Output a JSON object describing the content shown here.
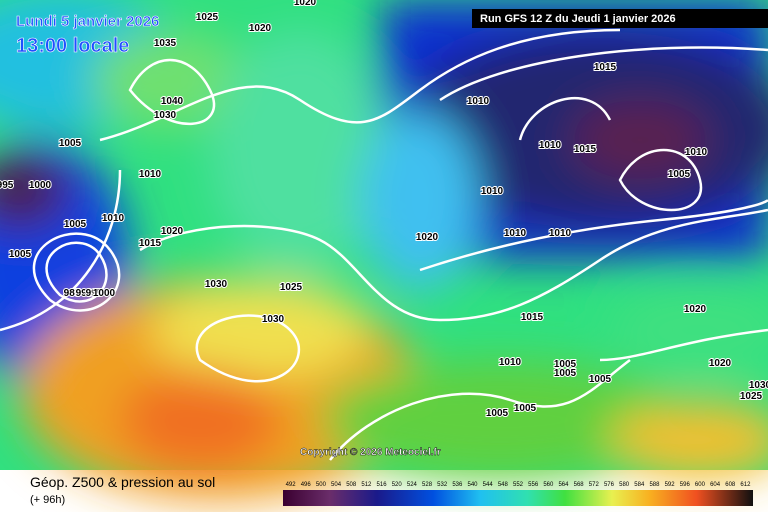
{
  "header": {
    "date": "Lundi 5 janvier 2026",
    "time": "13:00 locale",
    "run": "Run GFS 12 Z du Jeudi 1 janvier 2026"
  },
  "copyright": "Copyright © 2026 Meteociel.fr",
  "footer": {
    "title": "Géop. Z500 & pression au sol",
    "subtitle": "(+ 96h)"
  },
  "scale": {
    "labels": [
      492,
      496,
      500,
      504,
      508,
      512,
      516,
      520,
      524,
      528,
      532,
      536,
      540,
      544,
      548,
      552,
      556,
      560,
      564,
      568,
      572,
      576,
      580,
      584,
      588,
      592,
      596,
      600,
      604,
      608,
      612
    ]
  },
  "isobars": {
    "labels": [
      1025,
      1020,
      1020,
      1035,
      1040,
      1030,
      1005,
      1010,
      995,
      1000,
      1005,
      1010,
      1015,
      1020,
      1005,
      985,
      990,
      995,
      1000,
      1030,
      1025,
      1030,
      1010,
      1015,
      1010,
      1015,
      1010,
      1005,
      1010,
      1020,
      1010,
      1010,
      1015,
      1020,
      1010,
      1005,
      1005,
      1005,
      1020,
      1005,
      1005,
      1030,
      1025
    ]
  }
}
